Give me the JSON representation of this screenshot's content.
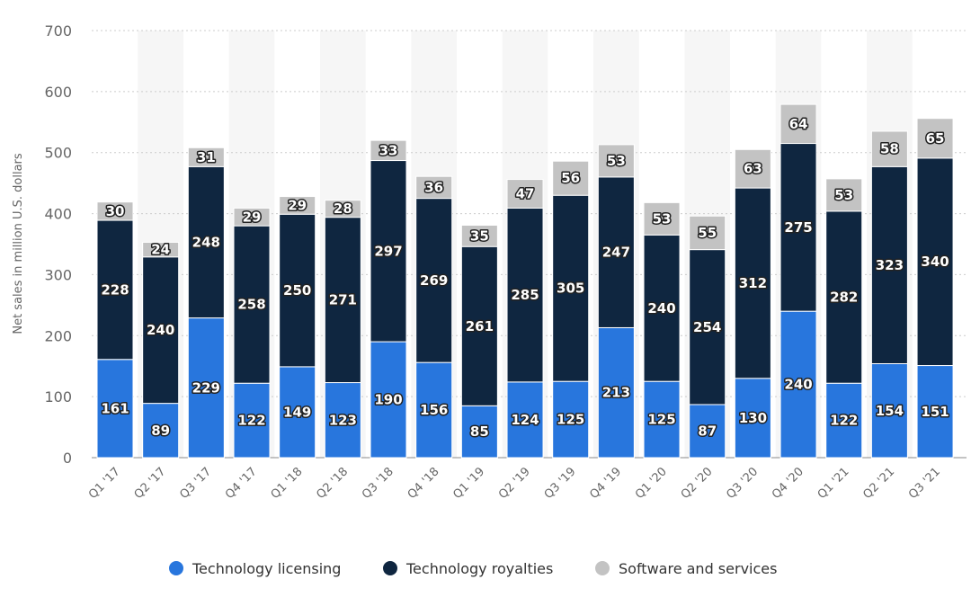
{
  "chart_data": {
    "type": "bar",
    "stacked": true,
    "title": "",
    "xlabel": "",
    "ylabel": "Net sales in million U.S. dollars",
    "ylim": [
      0,
      700
    ],
    "yticks": [
      0,
      100,
      200,
      300,
      400,
      500,
      600,
      700
    ],
    "grid": true,
    "legend_position": "bottom",
    "categories": [
      "Q1 '17",
      "Q2 '17",
      "Q3 '17",
      "Q4 '17",
      "Q1 '18",
      "Q2 '18",
      "Q3 '18",
      "Q4 '18",
      "Q1 '19",
      "Q2 '19",
      "Q3 '19",
      "Q4 '19",
      "Q1 '20",
      "Q2 '20",
      "Q3 '20",
      "Q4 '20",
      "Q1 '21",
      "Q2 '21",
      "Q3 '21"
    ],
    "series": [
      {
        "name": "Technology licensing",
        "color": "#2876dd",
        "values": [
          161,
          89,
          229,
          122,
          149,
          123,
          190,
          156,
          85,
          124,
          125,
          213,
          125,
          87,
          130,
          240,
          122,
          154,
          151
        ]
      },
      {
        "name": "Technology royalties",
        "color": "#0f2640",
        "values": [
          228,
          240,
          248,
          258,
          250,
          271,
          297,
          269,
          261,
          285,
          305,
          247,
          240,
          254,
          312,
          275,
          282,
          323,
          340
        ]
      },
      {
        "name": "Software and services",
        "color": "#c3c3c3",
        "values": [
          30,
          24,
          31,
          29,
          29,
          28,
          33,
          36,
          35,
          47,
          56,
          53,
          53,
          55,
          63,
          64,
          53,
          58,
          65
        ]
      }
    ]
  }
}
